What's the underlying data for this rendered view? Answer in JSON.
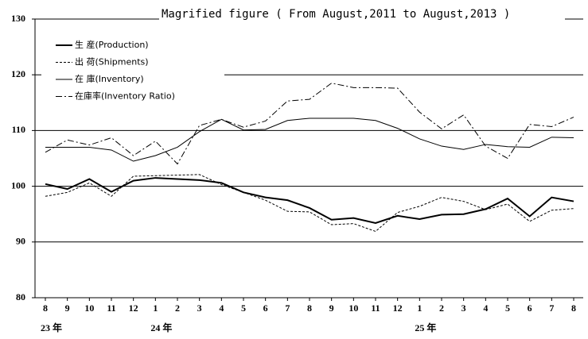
{
  "chart_data": {
    "type": "line",
    "title": "Magrified figure ( From August,2011 to August,2013 )",
    "categories": [
      "8",
      "9",
      "10",
      "11",
      "12",
      "1",
      "2",
      "3",
      "4",
      "5",
      "6",
      "7",
      "8",
      "9",
      "10",
      "11",
      "12",
      "1",
      "2",
      "3",
      "4",
      "5",
      "6",
      "7",
      "8"
    ],
    "year_labels": [
      "23 年",
      null,
      null,
      null,
      null,
      "24 年",
      null,
      null,
      null,
      null,
      null,
      null,
      null,
      null,
      null,
      null,
      null,
      "25 年",
      null,
      null,
      null,
      null,
      null,
      null,
      null
    ],
    "ylim": [
      80,
      130
    ],
    "yticks": [
      80,
      90,
      100,
      110,
      120,
      130
    ],
    "grid": true,
    "legend": "upper left",
    "series": [
      {
        "name": "生 産(Production)",
        "color": "#000000",
        "style": "thick",
        "values": [
          100.4,
          99.5,
          101.3,
          99.0,
          101.0,
          101.5,
          101.3,
          101.1,
          100.6,
          98.9,
          98.0,
          97.5,
          96.1,
          94.0,
          94.3,
          93.4,
          94.7,
          94.1,
          94.9,
          95.0,
          95.9,
          97.8,
          94.6,
          98.0,
          97.3
        ]
      },
      {
        "name": "出 荷(Shipments)",
        "color": "#000000",
        "style": "dotted",
        "values": [
          98.2,
          98.9,
          100.6,
          98.2,
          101.8,
          101.9,
          102.0,
          102.1,
          100.3,
          98.9,
          97.5,
          95.5,
          95.4,
          93.1,
          93.3,
          91.9,
          95.3,
          96.4,
          98.0,
          97.3,
          95.8,
          96.8,
          93.7,
          95.7,
          96.0
        ]
      },
      {
        "name": "在 庫(Inventory)",
        "color": "#000000",
        "style": "thin",
        "values": [
          107.0,
          107.0,
          107.0,
          106.5,
          104.5,
          105.5,
          107.0,
          109.8,
          112.0,
          110.1,
          110.2,
          111.8,
          112.2,
          112.2,
          112.2,
          111.8,
          110.4,
          108.5,
          107.2,
          106.6,
          107.5,
          107.1,
          107.0,
          108.8,
          108.7
        ]
      },
      {
        "name": "在庫率(Inventory Ratio)",
        "color": "#000000",
        "style": "dashdot",
        "values": [
          106.1,
          108.3,
          107.4,
          108.7,
          105.5,
          108.1,
          104.0,
          110.9,
          112.0,
          110.6,
          111.7,
          115.3,
          115.6,
          118.5,
          117.7,
          117.7,
          117.6,
          113.3,
          110.3,
          112.8,
          107.2,
          105.0,
          111.1,
          110.7,
          112.4
        ]
      }
    ]
  }
}
